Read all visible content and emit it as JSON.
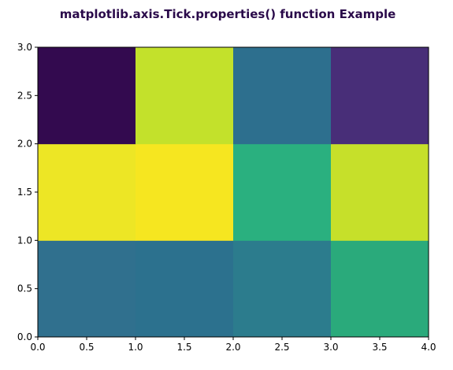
{
  "chart_data": {
    "type": "heatmap",
    "title": "matplotlib.axis.Tick.properties() function Example",
    "title_color": "#2a0a4a",
    "xlabel": "",
    "ylabel": "",
    "xlim": [
      0,
      4
    ],
    "ylim": [
      0,
      3
    ],
    "x_edges": [
      0,
      1,
      2,
      3,
      4
    ],
    "y_edges": [
      0,
      1,
      2,
      3
    ],
    "xticks": [
      0.0,
      0.5,
      1.0,
      1.5,
      2.0,
      2.5,
      3.0,
      3.5,
      4.0
    ],
    "xtick_labels": [
      "0.0",
      "0.5",
      "1.0",
      "1.5",
      "2.0",
      "2.5",
      "3.0",
      "3.5",
      "4.0"
    ],
    "yticks": [
      0.0,
      0.5,
      1.0,
      1.5,
      2.0,
      2.5,
      3.0
    ],
    "ytick_labels": [
      "0.0",
      "0.5",
      "1.0",
      "1.5",
      "2.0",
      "2.5",
      "3.0"
    ],
    "grid": false,
    "colormap": "viridis",
    "cells": [
      {
        "row": 0,
        "col": 0,
        "color": "#30708e"
      },
      {
        "row": 0,
        "col": 1,
        "color": "#2c718e"
      },
      {
        "row": 0,
        "col": 2,
        "color": "#2c7c8d"
      },
      {
        "row": 0,
        "col": 3,
        "color": "#2aaa7b"
      },
      {
        "row": 1,
        "col": 0,
        "color": "#ede625"
      },
      {
        "row": 1,
        "col": 1,
        "color": "#f6e620"
      },
      {
        "row": 1,
        "col": 2,
        "color": "#2ab07f"
      },
      {
        "row": 1,
        "col": 3,
        "color": "#c6e02a"
      },
      {
        "row": 2,
        "col": 0,
        "color": "#330a4f"
      },
      {
        "row": 2,
        "col": 1,
        "color": "#c3e12b"
      },
      {
        "row": 2,
        "col": 2,
        "color": "#2d6f8e"
      },
      {
        "row": 2,
        "col": 3,
        "color": "#482e78"
      }
    ]
  }
}
